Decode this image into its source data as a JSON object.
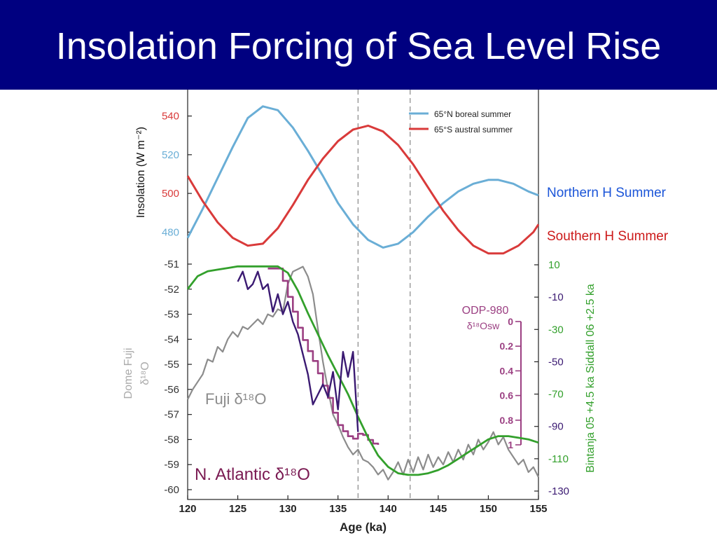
{
  "slide": {
    "title": "Insolation Forcing of Sea Level Rise",
    "notes": [
      "Northern H Summer",
      "Southern H Summer"
    ]
  },
  "colors": {
    "header_bg": "#000080",
    "boreal": "#6aaed6",
    "austral": "#d93a3a",
    "dome_fuji": "#8c8c8c",
    "odp980": "#9b3f82",
    "n_atlantic": "#3b1a72",
    "sea_level": "#33a02c",
    "north_note": "#1b55d8",
    "south_note": "#cc1a1a",
    "atlantic_label": "#7a1a52"
  },
  "chart_data": {
    "type": "line",
    "x_axis": {
      "label": "Age (ka)",
      "range": [
        120,
        155
      ],
      "ticks": [
        "120",
        "125",
        "130",
        "135",
        "140",
        "145",
        "150",
        "155"
      ]
    },
    "insolation_axis": {
      "label": "Insolation (W m⁻²)",
      "range": [
        466,
        550
      ],
      "ticks": [
        "540",
        "520",
        "500",
        "480"
      ],
      "tick_values": [
        540,
        520,
        500,
        480
      ]
    },
    "dome_fuji_axis": {
      "label_line1": "Dome Fuji",
      "label_line2": "δ¹⁸O",
      "range": [
        -60,
        -51
      ],
      "ticks": [
        "-51",
        "-52",
        "-53",
        "-54",
        "-55",
        "-56",
        "-57",
        "-58",
        "-59",
        "-60"
      ],
      "tick_values": [
        -51,
        -52,
        -53,
        -54,
        -55,
        -56,
        -57,
        -58,
        -59,
        -60
      ]
    },
    "odp_axis": {
      "label_line1": "ODP-980",
      "label_line2": "δ¹⁸Osw",
      "range": [
        0,
        1
      ],
      "ticks": [
        "0",
        "0.2",
        "0.4",
        "0.6",
        "0.8",
        "1"
      ],
      "tick_values": [
        0,
        0.2,
        0.4,
        0.6,
        0.8,
        1
      ]
    },
    "sea_level_axis": {
      "label": "Bintanja 05 +4.5 ka Siddall 06 +2.5 ka",
      "range": [
        -130,
        10
      ],
      "ticks": [
        "10",
        "-10",
        "-30",
        "-50",
        "-70",
        "-90",
        "-110",
        "-130"
      ],
      "tick_values": [
        10,
        -10,
        -30,
        -50,
        -70,
        -90,
        -110,
        -130
      ]
    },
    "vlines": [
      137,
      142.2
    ],
    "legend": {
      "placement": "top-right",
      "entries": [
        "65°N boreal summer",
        "65°S austral summer"
      ]
    },
    "annotations": [
      "Fuji δ¹⁸O",
      "N. Atlantic δ¹⁸O"
    ],
    "series": [
      {
        "name": "65°N boreal summer",
        "axis": "insolation",
        "x": [
          120,
          121.5,
          123,
          124.5,
          126,
          127.5,
          129,
          130.5,
          132,
          133.5,
          135,
          136.5,
          138,
          139.5,
          141,
          142.5,
          144,
          145.5,
          147,
          148.5,
          150,
          151,
          152.5,
          154,
          155
        ],
        "y": [
          477,
          492,
          508,
          524,
          539,
          545,
          543,
          534,
          522,
          509,
          495,
          484,
          476,
          472,
          474,
          480,
          488,
          495,
          501,
          505,
          507,
          507,
          505,
          501,
          499
        ]
      },
      {
        "name": "65°S austral summer",
        "axis": "insolation",
        "x": [
          120,
          121.5,
          123,
          124.5,
          126,
          127.5,
          129,
          130.5,
          132,
          133.5,
          135,
          136.5,
          138,
          139.5,
          141,
          142.5,
          144,
          145.5,
          147,
          148.5,
          150,
          151.5,
          153,
          154.5,
          155
        ],
        "y": [
          509,
          496,
          485,
          477,
          473,
          474,
          482,
          494,
          507,
          518,
          527,
          533,
          535,
          532,
          525,
          515,
          503,
          491,
          481,
          473,
          469,
          469,
          473,
          480,
          484
        ]
      },
      {
        "name": "Dome Fuji δ¹⁸O",
        "axis": "dome_fuji",
        "x": [
          120,
          120.5,
          121,
          121.5,
          122,
          122.5,
          123,
          123.5,
          124,
          124.5,
          125,
          125.5,
          126,
          126.5,
          127,
          127.5,
          128,
          128.5,
          129,
          129.5,
          130,
          130.5,
          131,
          131.5,
          132,
          132.5,
          133,
          133.5,
          134,
          134.5,
          135,
          135.5,
          136,
          136.5,
          137,
          137.5,
          138,
          138.5,
          139,
          139.5,
          140,
          140.5,
          141,
          141.5,
          142,
          142.5,
          143,
          143.5,
          144,
          144.5,
          145,
          145.5,
          146,
          146.5,
          147,
          147.5,
          148,
          148.5,
          149,
          149.5,
          150,
          150.5,
          151,
          151.5,
          152,
          152.5,
          153,
          153.5,
          154,
          154.5,
          155
        ],
        "y": [
          -56.4,
          -56.0,
          -55.7,
          -55.4,
          -54.8,
          -54.9,
          -54.3,
          -54.5,
          -54.0,
          -53.7,
          -53.9,
          -53.5,
          -53.6,
          -53.4,
          -53.2,
          -53.4,
          -53.0,
          -53.1,
          -52.8,
          -52.9,
          -51.8,
          -51.3,
          -51.2,
          -51.1,
          -51.5,
          -52.2,
          -53.6,
          -54.9,
          -56.0,
          -57.0,
          -57.4,
          -57.9,
          -58.3,
          -58.6,
          -58.4,
          -58.8,
          -58.9,
          -59.1,
          -59.4,
          -59.2,
          -59.6,
          -59.3,
          -58.9,
          -59.4,
          -58.8,
          -59.3,
          -58.7,
          -59.2,
          -58.6,
          -59.1,
          -58.7,
          -59.0,
          -58.5,
          -58.9,
          -58.4,
          -58.8,
          -58.2,
          -58.6,
          -58.0,
          -58.4,
          -58.1,
          -57.7,
          -58.2,
          -57.9,
          -58.4,
          -58.7,
          -59.0,
          -58.8,
          -59.3,
          -59.1,
          -59.5
        ]
      },
      {
        "name": "ODP-980 δ¹⁸Osw",
        "axis": "odp",
        "x": [
          128,
          128.5,
          129,
          129.5,
          130,
          130.5,
          131,
          131.5,
          132,
          132.5,
          133,
          133.5,
          134,
          134.5,
          135,
          135.5,
          136,
          136.5,
          137,
          137.5,
          138,
          138.5,
          139
        ],
        "y": [
          -0.43,
          -0.43,
          -0.43,
          -0.33,
          -0.2,
          -0.08,
          0.05,
          0.15,
          0.24,
          0.32,
          0.42,
          0.52,
          0.62,
          0.74,
          0.84,
          0.89,
          0.93,
          0.95,
          0.91,
          0.92,
          0.96,
          0.99,
          1.0
        ]
      },
      {
        "name": "N. Atlantic δ¹⁸O",
        "axis": "dome_fuji",
        "x": [
          125,
          125.5,
          126,
          126.5,
          127,
          127.5,
          128,
          128.5,
          129,
          129.5,
          130,
          130.5,
          131,
          131.5,
          132,
          132.5,
          133,
          133.5,
          134,
          134.5,
          135,
          135.5,
          136,
          136.5,
          137
        ],
        "y": [
          -51.7,
          -51.3,
          -52.0,
          -51.8,
          -51.3,
          -52.0,
          -51.8,
          -52.9,
          -52.2,
          -53.0,
          -52.5,
          -53.3,
          -53.8,
          -54.6,
          -55.4,
          -56.6,
          -56.2,
          -55.8,
          -56.3,
          -55.3,
          -56.8,
          -54.5,
          -55.5,
          -54.5,
          -57.7
        ]
      },
      {
        "name": "Sea level (Bintanja 05 / Siddall 06)",
        "axis": "sea_level",
        "x": [
          120,
          121,
          122,
          123,
          124,
          125,
          126,
          127,
          128,
          129,
          130,
          131,
          132,
          133,
          134,
          135,
          136,
          137,
          138,
          139,
          140,
          141,
          142,
          143,
          144,
          145,
          146,
          147,
          148,
          149,
          150,
          151,
          152,
          153,
          154,
          155
        ],
        "y": [
          -5,
          3,
          6,
          7,
          8,
          9,
          9,
          9,
          9,
          9,
          5,
          -6,
          -20,
          -33,
          -46,
          -58,
          -70,
          -84,
          -97,
          -108,
          -115,
          -119,
          -120,
          -120,
          -119,
          -117,
          -114,
          -110,
          -106,
          -102,
          -98,
          -96,
          -96,
          -97,
          -98,
          -100
        ]
      }
    ]
  }
}
